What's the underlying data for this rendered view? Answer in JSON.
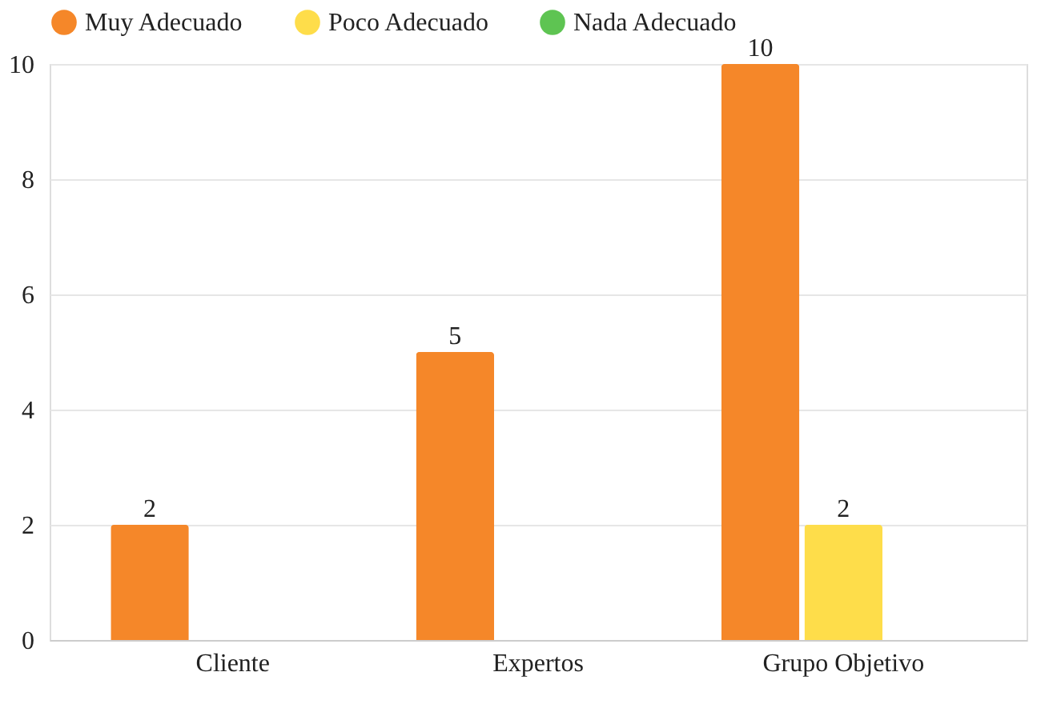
{
  "chart_data": {
    "type": "bar",
    "categories": [
      "Cliente",
      "Expertos",
      "Grupo Objetivo"
    ],
    "series": [
      {
        "name": "Muy Adecuado",
        "color": "#f58729",
        "values": [
          2,
          5,
          10
        ]
      },
      {
        "name": "Poco Adecuado",
        "color": "#fedd4a",
        "values": [
          null,
          null,
          2
        ]
      },
      {
        "name": "Nada Adecuado",
        "color": "#5ec452",
        "values": [
          null,
          null,
          null
        ]
      }
    ],
    "ylim": [
      0,
      10
    ],
    "yticks": [
      0,
      2,
      4,
      6,
      8,
      10
    ],
    "grid": "y",
    "legend": "top",
    "data_labels": true
  }
}
